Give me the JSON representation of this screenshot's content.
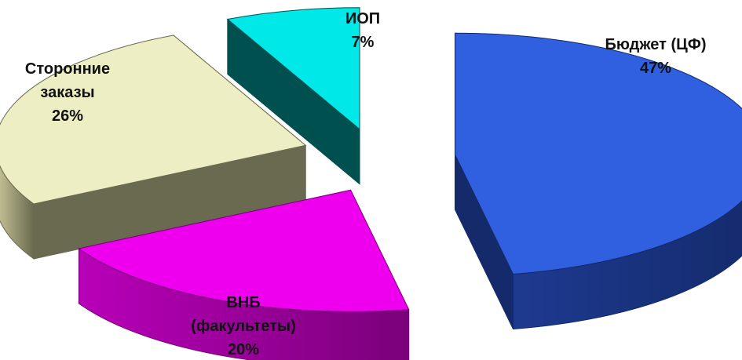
{
  "chart_data": {
    "type": "pie",
    "style": "3d-exploded",
    "legend": "none",
    "slices": [
      {
        "key": "budget",
        "label_lines": [
          "Бюджет (ЦФ)",
          "47%"
        ],
        "value": 47,
        "colors": {
          "top": "#3060e0",
          "side": "#1e3a90",
          "edge": "#142a6a"
        }
      },
      {
        "key": "vnb",
        "label_lines": [
          "ВНБ",
          "(факультеты)",
          "20%"
        ],
        "value": 20,
        "colors": {
          "top": "#ee00ee",
          "side": "#b800b8",
          "edge": "#7a007a"
        }
      },
      {
        "key": "outside",
        "label_lines": [
          "Сторонние",
          "заказы",
          "26%"
        ],
        "value": 26,
        "colors": {
          "top": "#eeeec4",
          "side": "#c9c79a",
          "edge": "#6a6a50"
        }
      },
      {
        "key": "iop",
        "label_lines": [
          "ИОП",
          "7%"
        ],
        "value": 7,
        "colors": {
          "top": "#00e8e8",
          "side": "#007070",
          "edge": "#005050"
        }
      }
    ]
  }
}
